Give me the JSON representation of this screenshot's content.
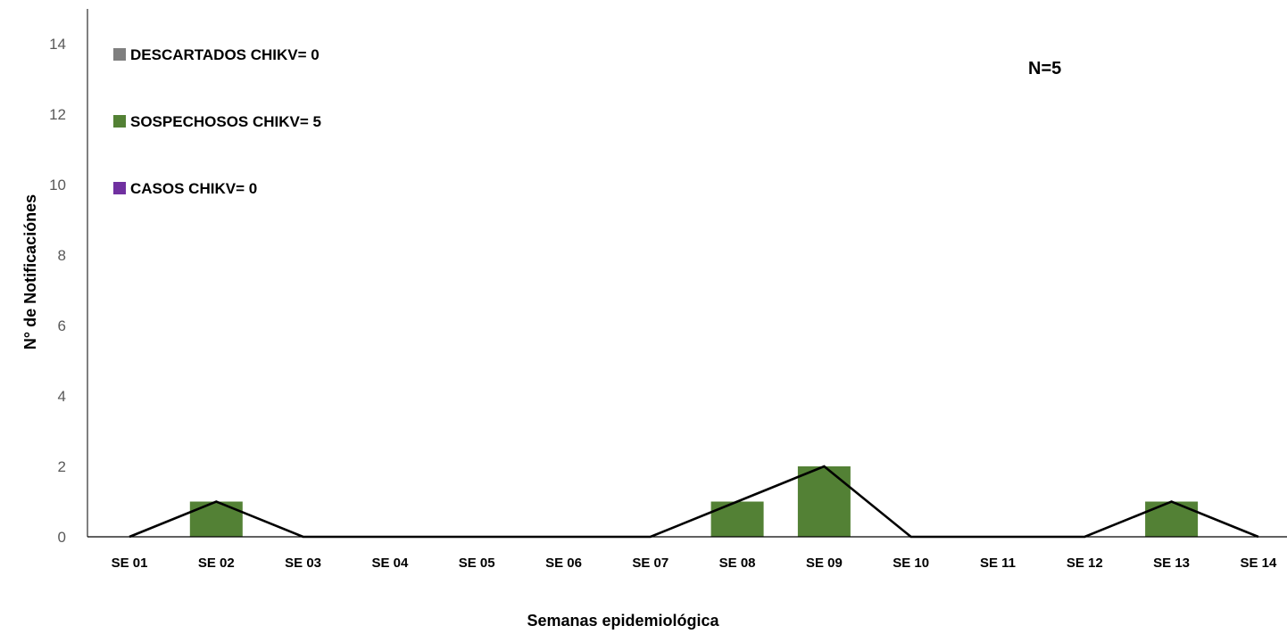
{
  "chart_data": {
    "type": "bar",
    "title": "",
    "xlabel": "Semanas epidemiológica",
    "ylabel": "N° de Notificaciónes",
    "ylim": [
      0,
      15
    ],
    "yticks": [
      "0",
      "2",
      "4",
      "6",
      "8",
      "10",
      "12",
      "14"
    ],
    "ytick_values": [
      0,
      2,
      4,
      6,
      8,
      10,
      12,
      14
    ],
    "categories": [
      "SE 01",
      "SE 02",
      "SE 03",
      "SE 04",
      "SE 05",
      "SE 06",
      "SE 07",
      "SE 08",
      "SE 09",
      "SE 10",
      "SE 11",
      "SE 12",
      "SE 13",
      "SE 14"
    ],
    "series": [
      {
        "name": "DESCARTADOS CHIKV= 0",
        "kind": "bar",
        "color": "#7f7f7f",
        "values": [
          0,
          0,
          0,
          0,
          0,
          0,
          0,
          0,
          0,
          0,
          0,
          0,
          0,
          0
        ]
      },
      {
        "name": "SOSPECHOSOS CHIKV= 5",
        "kind": "bar",
        "color": "#538135",
        "values": [
          0,
          1,
          0,
          0,
          0,
          0,
          0,
          1,
          2,
          0,
          0,
          0,
          1,
          0
        ]
      },
      {
        "name": "CASOS CHIKV= 0",
        "kind": "bar",
        "color": "#7030a0",
        "values": [
          0,
          0,
          0,
          0,
          0,
          0,
          0,
          0,
          0,
          0,
          0,
          0,
          0,
          0
        ]
      }
    ],
    "trend_line": {
      "color": "#000000",
      "values": [
        0,
        1,
        0,
        0,
        0,
        0,
        0,
        1,
        2,
        0,
        0,
        0,
        1,
        0
      ]
    },
    "legend_position": "top-left",
    "annotation": "N=5",
    "grid": false
  }
}
